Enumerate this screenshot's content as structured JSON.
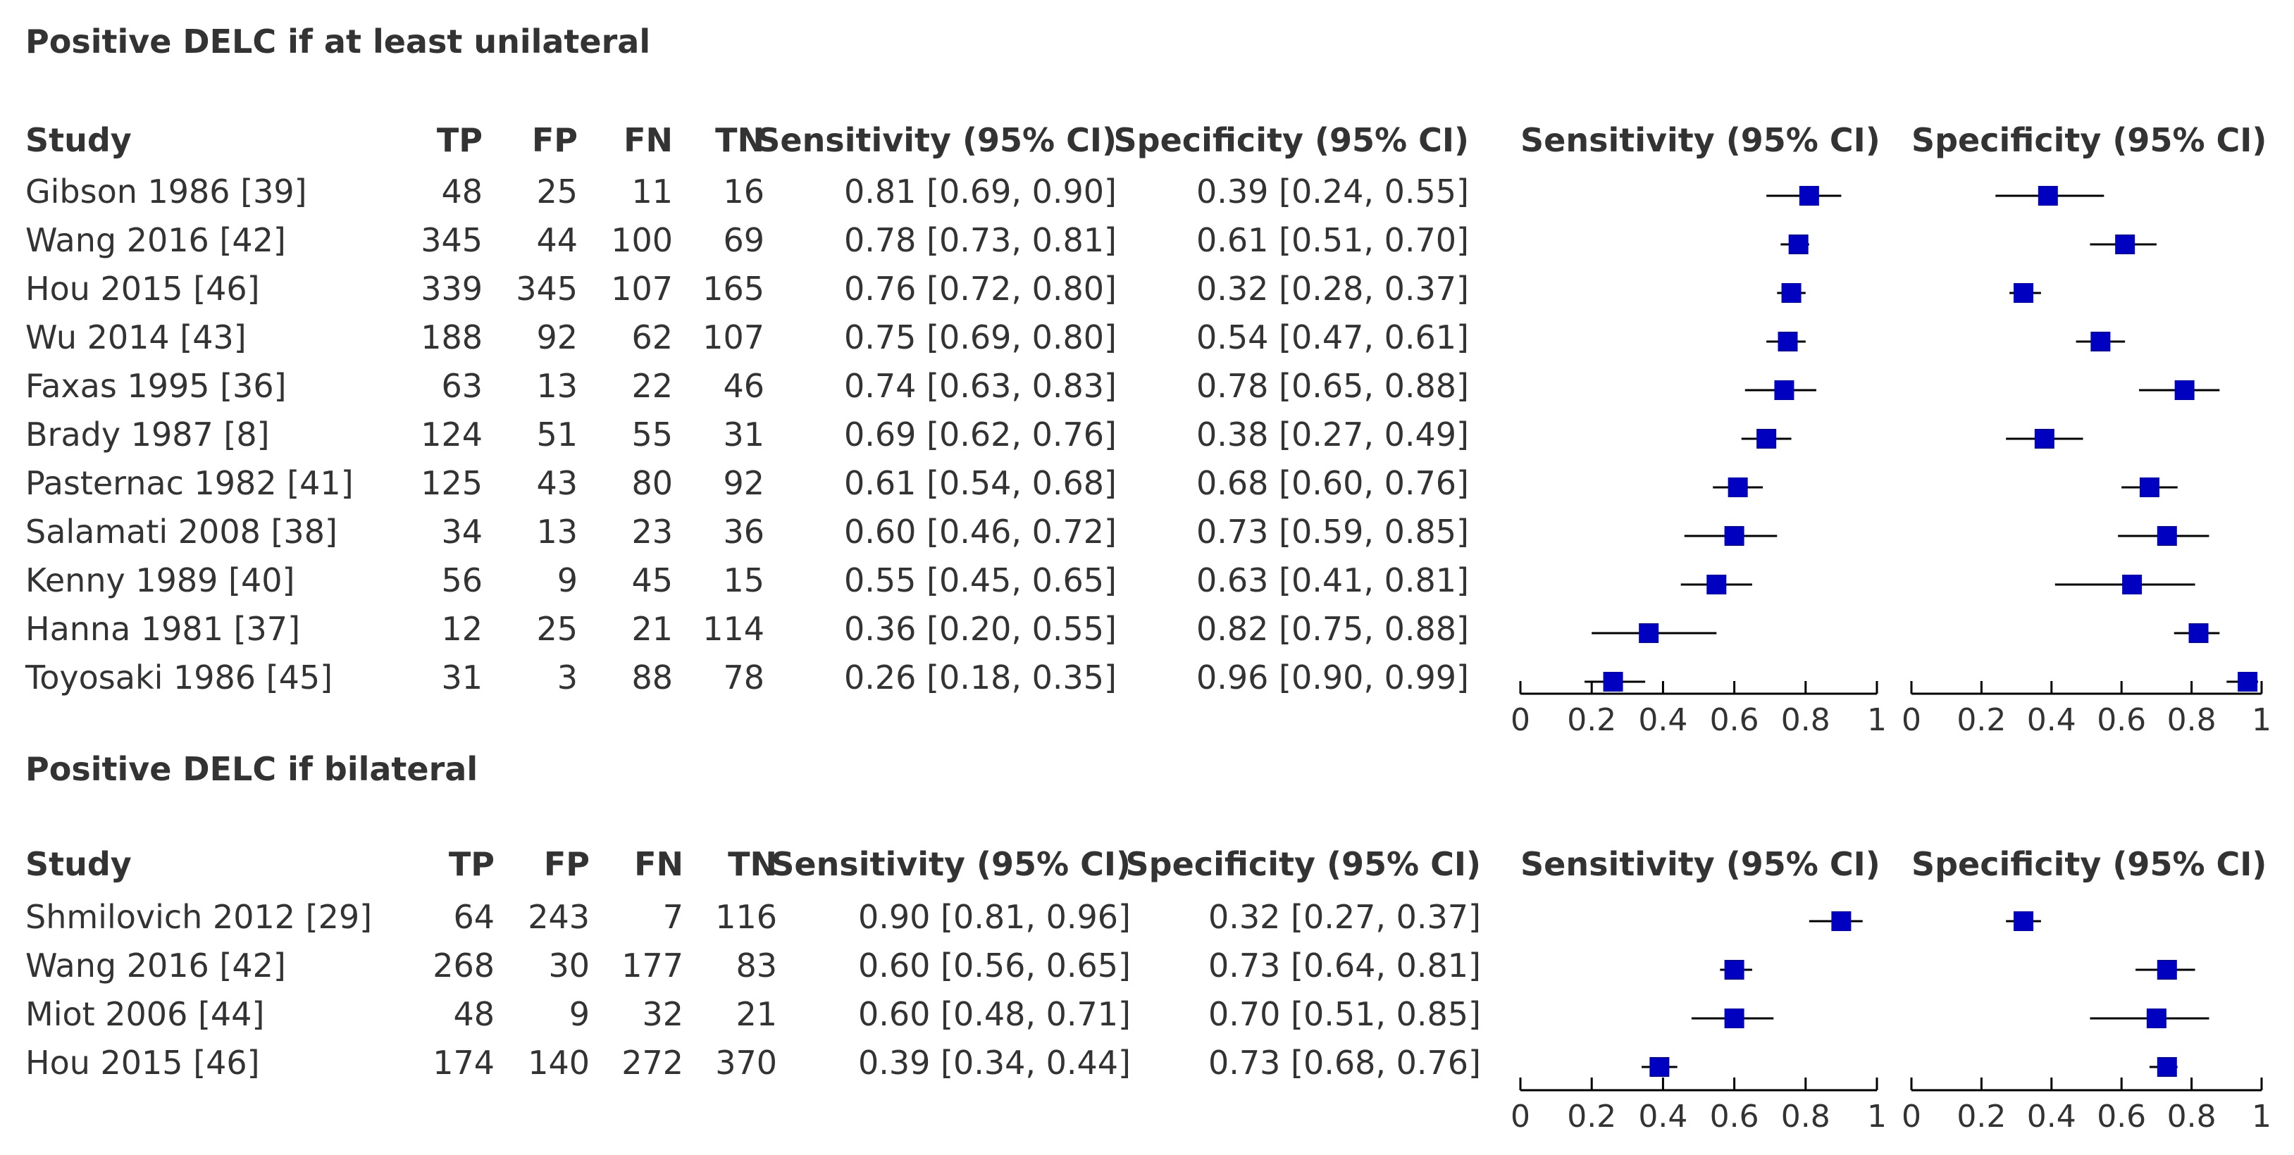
{
  "sections": [
    {
      "title": "Positive DELC if at least unilateral",
      "headers": {
        "study": "Study",
        "tp": "TP",
        "fp": "FP",
        "fn": "FN",
        "tn": "TN",
        "sensitivity": "Sensitivity (95% CI)",
        "specificity": "Specificity (95% CI)",
        "plot_sensitivity": "Sensitivity (95% CI)",
        "plot_specificity": "Specificity (95% CI)"
      },
      "rows": [
        {
          "study": "Gibson 1986 [39]",
          "tp": "48",
          "fp": "25",
          "fn": "11",
          "tn": "16",
          "sens_text": "0.81 [0.69, 0.90]",
          "spec_text": "0.39 [0.24, 0.55]"
        },
        {
          "study": "Wang 2016 [42]",
          "tp": "345",
          "fp": "44",
          "fn": "100",
          "tn": "69",
          "sens_text": "0.78 [0.73, 0.81]",
          "spec_text": "0.61 [0.51, 0.70]"
        },
        {
          "study": "Hou 2015 [46]",
          "tp": "339",
          "fp": "345",
          "fn": "107",
          "tn": "165",
          "sens_text": "0.76 [0.72, 0.80]",
          "spec_text": "0.32 [0.28, 0.37]"
        },
        {
          "study": "Wu 2014 [43]",
          "tp": "188",
          "fp": "92",
          "fn": "62",
          "tn": "107",
          "sens_text": "0.75 [0.69, 0.80]",
          "spec_text": "0.54 [0.47, 0.61]"
        },
        {
          "study": "Faxas 1995 [36]",
          "tp": "63",
          "fp": "13",
          "fn": "22",
          "tn": "46",
          "sens_text": "0.74 [0.63, 0.83]",
          "spec_text": "0.78 [0.65, 0.88]"
        },
        {
          "study": "Brady 1987 [8]",
          "tp": "124",
          "fp": "51",
          "fn": "55",
          "tn": "31",
          "sens_text": "0.69 [0.62, 0.76]",
          "spec_text": "0.38 [0.27, 0.49]"
        },
        {
          "study": "Pasternac 1982 [41]",
          "tp": "125",
          "fp": "43",
          "fn": "80",
          "tn": "92",
          "sens_text": "0.61 [0.54, 0.68]",
          "spec_text": "0.68 [0.60, 0.76]"
        },
        {
          "study": "Salamati 2008 [38]",
          "tp": "34",
          "fp": "13",
          "fn": "23",
          "tn": "36",
          "sens_text": "0.60 [0.46, 0.72]",
          "spec_text": "0.73 [0.59, 0.85]"
        },
        {
          "study": "Kenny 1989 [40]",
          "tp": "56",
          "fp": "9",
          "fn": "45",
          "tn": "15",
          "sens_text": "0.55 [0.45, 0.65]",
          "spec_text": "0.63 [0.41, 0.81]"
        },
        {
          "study": "Hanna 1981 [37]",
          "tp": "12",
          "fp": "25",
          "fn": "21",
          "tn": "114",
          "sens_text": "0.36 [0.20, 0.55]",
          "spec_text": "0.82 [0.75, 0.88]"
        },
        {
          "study": "Toyosaki 1986 [45]",
          "tp": "31",
          "fp": "3",
          "fn": "88",
          "tn": "78",
          "sens_text": "0.26 [0.18, 0.35]",
          "spec_text": "0.96 [0.90, 0.99]"
        }
      ]
    },
    {
      "title": "Positive DELC if bilateral",
      "headers": {
        "study": "Study",
        "tp": "TP",
        "fp": "FP",
        "fn": "FN",
        "tn": "TN",
        "sensitivity": "Sensitivity (95% CI)",
        "specificity": "Specificity (95% CI)",
        "plot_sensitivity": "Sensitivity (95% CI)",
        "plot_specificity": "Specificity (95% CI)"
      },
      "rows": [
        {
          "study": "Shmilovich 2012 [29]",
          "tp": "64",
          "fp": "243",
          "fn": "7",
          "tn": "116",
          "sens_text": "0.90 [0.81, 0.96]",
          "spec_text": "0.32 [0.27, 0.37]"
        },
        {
          "study": "Wang 2016 [42]",
          "tp": "268",
          "fp": "30",
          "fn": "177",
          "tn": "83",
          "sens_text": "0.60 [0.56, 0.65]",
          "spec_text": "0.73 [0.64, 0.81]"
        },
        {
          "study": "Miot 2006 [44]",
          "tp": "48",
          "fp": "9",
          "fn": "32",
          "tn": "21",
          "sens_text": "0.60 [0.48, 0.71]",
          "spec_text": "0.70 [0.51, 0.85]"
        },
        {
          "study": "Hou 2015 [46]",
          "tp": "174",
          "fp": "140",
          "fn": "272",
          "tn": "370",
          "sens_text": "0.39 [0.34, 0.44]",
          "spec_text": "0.73 [0.68, 0.76]"
        }
      ]
    }
  ],
  "chart_data": {
    "type": "forest",
    "xlim": [
      0,
      1
    ],
    "ticks": [
      "0",
      "0.2",
      "0.4",
      "0.6",
      "0.8",
      "1"
    ],
    "tick_values": [
      0,
      0.2,
      0.4,
      0.6,
      0.8,
      1
    ],
    "marker_color": "#0000c0",
    "line_color": "#000000",
    "sections": [
      {
        "sensitivity": [
          {
            "est": 0.81,
            "lo": 0.69,
            "hi": 0.9
          },
          {
            "est": 0.78,
            "lo": 0.73,
            "hi": 0.81
          },
          {
            "est": 0.76,
            "lo": 0.72,
            "hi": 0.8
          },
          {
            "est": 0.75,
            "lo": 0.69,
            "hi": 0.8
          },
          {
            "est": 0.74,
            "lo": 0.63,
            "hi": 0.83
          },
          {
            "est": 0.69,
            "lo": 0.62,
            "hi": 0.76
          },
          {
            "est": 0.61,
            "lo": 0.54,
            "hi": 0.68
          },
          {
            "est": 0.6,
            "lo": 0.46,
            "hi": 0.72
          },
          {
            "est": 0.55,
            "lo": 0.45,
            "hi": 0.65
          },
          {
            "est": 0.36,
            "lo": 0.2,
            "hi": 0.55
          },
          {
            "est": 0.26,
            "lo": 0.18,
            "hi": 0.35
          }
        ],
        "specificity": [
          {
            "est": 0.39,
            "lo": 0.24,
            "hi": 0.55
          },
          {
            "est": 0.61,
            "lo": 0.51,
            "hi": 0.7
          },
          {
            "est": 0.32,
            "lo": 0.28,
            "hi": 0.37
          },
          {
            "est": 0.54,
            "lo": 0.47,
            "hi": 0.61
          },
          {
            "est": 0.78,
            "lo": 0.65,
            "hi": 0.88
          },
          {
            "est": 0.38,
            "lo": 0.27,
            "hi": 0.49
          },
          {
            "est": 0.68,
            "lo": 0.6,
            "hi": 0.76
          },
          {
            "est": 0.73,
            "lo": 0.59,
            "hi": 0.85
          },
          {
            "est": 0.63,
            "lo": 0.41,
            "hi": 0.81
          },
          {
            "est": 0.82,
            "lo": 0.75,
            "hi": 0.88
          },
          {
            "est": 0.96,
            "lo": 0.9,
            "hi": 0.99
          }
        ]
      },
      {
        "sensitivity": [
          {
            "est": 0.9,
            "lo": 0.81,
            "hi": 0.96
          },
          {
            "est": 0.6,
            "lo": 0.56,
            "hi": 0.65
          },
          {
            "est": 0.6,
            "lo": 0.48,
            "hi": 0.71
          },
          {
            "est": 0.39,
            "lo": 0.34,
            "hi": 0.44
          }
        ],
        "specificity": [
          {
            "est": 0.32,
            "lo": 0.27,
            "hi": 0.37
          },
          {
            "est": 0.73,
            "lo": 0.64,
            "hi": 0.81
          },
          {
            "est": 0.7,
            "lo": 0.51,
            "hi": 0.85
          },
          {
            "est": 0.73,
            "lo": 0.68,
            "hi": 0.76
          }
        ]
      }
    ]
  }
}
